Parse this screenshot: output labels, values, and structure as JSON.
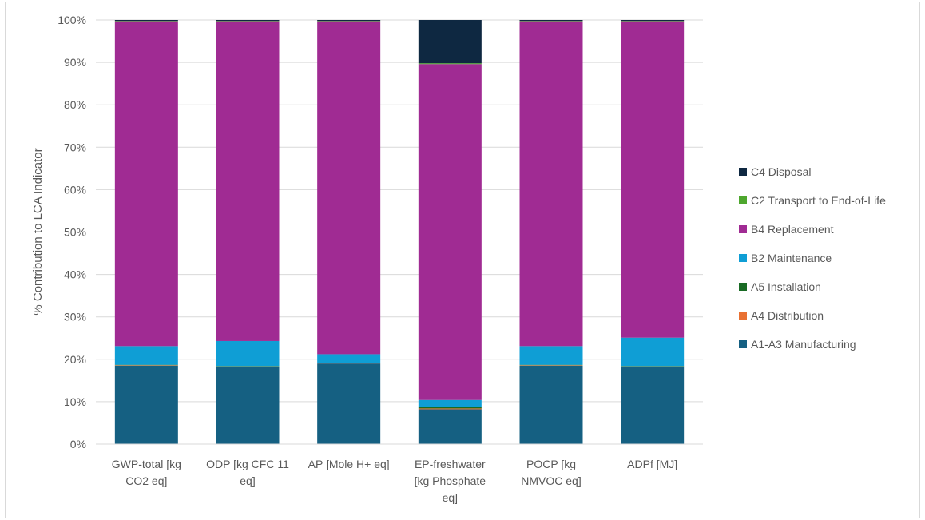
{
  "chart_data": {
    "type": "bar",
    "stacked": true,
    "percent": true,
    "ylabel": "% Contribution to LCA Indicator",
    "xlabel": "",
    "ylim": [
      0,
      100
    ],
    "yticks": [
      "0%",
      "10%",
      "20%",
      "30%",
      "40%",
      "50%",
      "60%",
      "70%",
      "80%",
      "90%",
      "100%"
    ],
    "grid": true,
    "legend_position": "right",
    "categories": [
      [
        "GWP-total [kg",
        "CO2 eq]"
      ],
      [
        "ODP [kg CFC 11",
        "eq]"
      ],
      [
        "AP [Mole H+ eq]"
      ],
      [
        "EP-freshwater",
        "[kg Phosphate",
        "eq]"
      ],
      [
        "POCP [kg",
        "NMVOC eq]"
      ],
      [
        "ADPf [MJ]"
      ]
    ],
    "series": [
      {
        "name": "A1-A3 Manufacturing",
        "color": "#156082",
        "values": [
          18.5,
          18.2,
          19.0,
          8.2,
          18.5,
          18.2
        ]
      },
      {
        "name": "A4 Distribution",
        "color": "#e97132",
        "values": [
          0.1,
          0.1,
          0.1,
          0.2,
          0.1,
          0.1
        ]
      },
      {
        "name": "A5 Installation",
        "color": "#196b24",
        "values": [
          0.1,
          0.1,
          0.1,
          0.4,
          0.1,
          0.1
        ]
      },
      {
        "name": "B2 Maintenance",
        "color": "#0f9ed5",
        "values": [
          4.4,
          5.9,
          2.0,
          1.6,
          4.4,
          6.7
        ]
      },
      {
        "name": "B4 Replacement",
        "color": "#a02b93",
        "values": [
          76.6,
          75.4,
          78.5,
          79.2,
          76.6,
          74.6
        ]
      },
      {
        "name": "C2 Transport to End-of-Life",
        "color": "#4ea72e",
        "values": [
          0.1,
          0.1,
          0.1,
          0.2,
          0.1,
          0.1
        ]
      },
      {
        "name": "C4 Disposal",
        "color": "#0e2841",
        "values": [
          0.2,
          0.2,
          0.2,
          10.2,
          0.2,
          0.2
        ]
      }
    ]
  }
}
